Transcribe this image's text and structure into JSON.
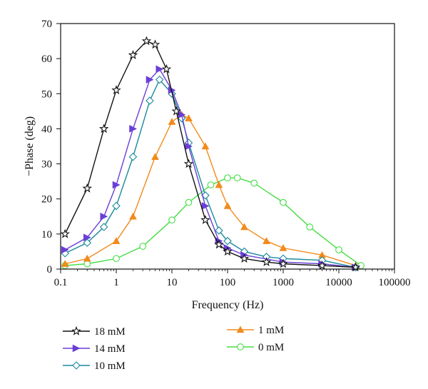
{
  "chart_data": {
    "type": "line",
    "title": "",
    "xlabel": "Frequency (Hz)",
    "ylabel": "−Phase (deg)",
    "xscale": "log",
    "xlim": [
      0.1,
      100000
    ],
    "ylim": [
      0,
      70
    ],
    "xticks": [
      {
        "value": 0.1,
        "label": "0.1"
      },
      {
        "value": 1,
        "label": "1"
      },
      {
        "value": 10,
        "label": "10"
      },
      {
        "value": 100,
        "label": "100"
      },
      {
        "value": 1000,
        "label": "1000"
      },
      {
        "value": 10000,
        "label": "10000"
      },
      {
        "value": 100000,
        "label": "100000"
      }
    ],
    "yticks": [
      {
        "value": 0,
        "label": "0"
      },
      {
        "value": 10,
        "label": "10"
      },
      {
        "value": 20,
        "label": "20"
      },
      {
        "value": 30,
        "label": "30"
      },
      {
        "value": 40,
        "label": "40"
      },
      {
        "value": 50,
        "label": "50"
      },
      {
        "value": 60,
        "label": "60"
      },
      {
        "value": 70,
        "label": "70"
      }
    ],
    "grid": false,
    "legend_position": "bottom",
    "series": [
      {
        "name": "18 mM",
        "color": "#111111",
        "marker": "star-open",
        "x": [
          0.12,
          0.3,
          0.6,
          1.0,
          2.0,
          3.5,
          5.0,
          8.0,
          12.0,
          20.0,
          40.0,
          70.0,
          100.0,
          200.0,
          500.0,
          1000.0,
          5000.0,
          20000.0
        ],
        "y": [
          10,
          23,
          40,
          51,
          61,
          65,
          64,
          57,
          45,
          30,
          14,
          7,
          5,
          3,
          2,
          1.5,
          1,
          0.5
        ]
      },
      {
        "name": "14 mM",
        "color": "#6A3FD6",
        "marker": "triangle-right-filled",
        "x": [
          0.12,
          0.3,
          0.6,
          1.0,
          2.0,
          4.0,
          6.0,
          10.0,
          15.0,
          20.0,
          40.0,
          70.0,
          100.0,
          200.0,
          1000.0,
          5000.0,
          20000.0
        ],
        "y": [
          5.5,
          9,
          15,
          24,
          40,
          54,
          57,
          51,
          44,
          35,
          18,
          8,
          6,
          4,
          2,
          1.5,
          0.5
        ]
      },
      {
        "name": "10 mM",
        "color": "#1A8A9A",
        "marker": "diamond-open",
        "x": [
          0.12,
          0.3,
          0.6,
          1.0,
          2.0,
          4.0,
          6.0,
          10.0,
          15.0,
          20.0,
          40.0,
          70.0,
          100.0,
          200.0,
          500.0,
          1000.0,
          5000.0,
          20000.0
        ],
        "y": [
          4.5,
          7.5,
          12,
          18,
          32,
          48,
          54,
          50,
          43,
          36,
          21,
          11,
          8,
          5,
          3.5,
          3,
          2.5,
          0.5
        ]
      },
      {
        "name": "1 mM",
        "color": "#F28A1C",
        "marker": "triangle-up-filled",
        "x": [
          0.12,
          0.3,
          1.0,
          2.0,
          5.0,
          10.0,
          15.0,
          20.0,
          40.0,
          70.0,
          100.0,
          200.0,
          500.0,
          1000.0,
          5000.0,
          20000.0
        ],
        "y": [
          1.5,
          3,
          8,
          15,
          32,
          42,
          44,
          43,
          35,
          24,
          18,
          12,
          8,
          6,
          4,
          1
        ]
      },
      {
        "name": "0 mM",
        "color": "#44DD44",
        "marker": "circle-open",
        "x": [
          0.12,
          0.3,
          1.0,
          3.0,
          10.0,
          20.0,
          50.0,
          100.0,
          150.0,
          300.0,
          1000.0,
          3000.0,
          10000.0,
          25000.0
        ],
        "y": [
          1,
          1.5,
          3,
          6.5,
          14,
          19,
          24,
          26,
          26,
          24.5,
          19,
          12,
          5.5,
          1
        ]
      }
    ]
  }
}
